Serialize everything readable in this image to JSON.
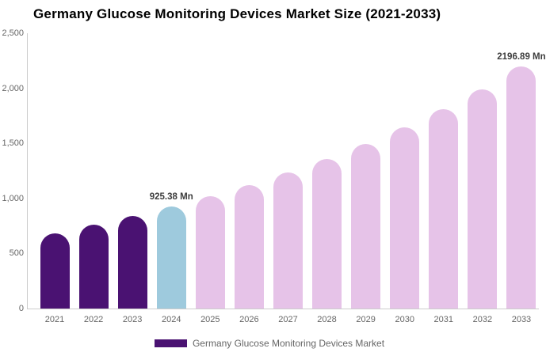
{
  "title": "Germany Glucose Monitoring Devices Market Size (2021-2033)",
  "legend": {
    "label": "Germany Glucose Monitoring Devices Market",
    "swatch_color": "#4A1272"
  },
  "colors": {
    "historical_bar": "#4A1272",
    "highlight_bar": "#9ECADD",
    "forecast_bar": "#E6C3E8",
    "axis_line": "#cccccc",
    "tick_text": "#666666",
    "value_label_text": "#3c3c3c",
    "title_text": "#000000"
  },
  "chart_data": {
    "type": "bar",
    "title": "Germany Glucose Monitoring Devices Market Size (2021-2033)",
    "unit": "Mn",
    "categories": [
      "2021",
      "2022",
      "2023",
      "2024",
      "2025",
      "2026",
      "2027",
      "2028",
      "2029",
      "2030",
      "2031",
      "2032",
      "2033"
    ],
    "values": [
      680,
      760,
      840,
      925.38,
      1018,
      1120,
      1233,
      1357,
      1494,
      1645,
      1811,
      1993,
      2196.89
    ],
    "bar_roles": [
      "historical_bar",
      "historical_bar",
      "historical_bar",
      "highlight_bar",
      "forecast_bar",
      "forecast_bar",
      "forecast_bar",
      "forecast_bar",
      "forecast_bar",
      "forecast_bar",
      "forecast_bar",
      "forecast_bar",
      "forecast_bar"
    ],
    "annotations": [
      {
        "category": "2024",
        "text": "925.38 Mn"
      },
      {
        "category": "2033",
        "text": "2196.89 Mn"
      }
    ],
    "xlabel": "",
    "ylabel": "",
    "ylim": [
      0,
      2500
    ],
    "yticks": [
      {
        "value": 0,
        "label": "0"
      },
      {
        "value": 500,
        "label": "500"
      },
      {
        "value": 1000,
        "label": "1,000"
      },
      {
        "value": 1500,
        "label": "1,500"
      },
      {
        "value": 2000,
        "label": "2,000"
      },
      {
        "value": 2500,
        "label": "2,500"
      }
    ],
    "grid": false,
    "legend_position": "bottom",
    "legend_entries": [
      "Germany Glucose Monitoring Devices Market"
    ]
  }
}
